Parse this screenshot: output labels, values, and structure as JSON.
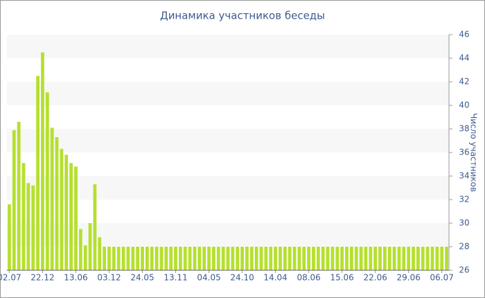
{
  "chart_data": {
    "type": "bar",
    "title": "Динамика участников беседы",
    "y_label": "Число участников",
    "categories": [
      "02.07",
      null,
      null,
      null,
      null,
      null,
      null,
      "22.12",
      null,
      null,
      null,
      null,
      null,
      null,
      "13.06",
      null,
      null,
      null,
      null,
      null,
      null,
      "03.12",
      null,
      null,
      null,
      null,
      null,
      null,
      "24.05",
      null,
      null,
      null,
      null,
      null,
      null,
      "13.11",
      null,
      null,
      null,
      null,
      null,
      null,
      "04.05",
      null,
      null,
      null,
      null,
      null,
      null,
      "24.10",
      null,
      null,
      null,
      null,
      null,
      null,
      "14.04",
      null,
      null,
      null,
      null,
      null,
      null,
      "08.06",
      null,
      null,
      null,
      null,
      null,
      null,
      "15.06",
      null,
      null,
      null,
      null,
      null,
      null,
      "22.06",
      null,
      null,
      null,
      null,
      null,
      null,
      "29.06",
      null,
      null,
      null,
      null,
      null,
      null,
      "06.07",
      null
    ],
    "values": [
      31.6,
      37.9,
      38.6,
      35.1,
      33.4,
      33.2,
      42.5,
      44.5,
      41.1,
      38.1,
      37.3,
      36.3,
      35.8,
      35.1,
      34.8,
      29.5,
      28.1,
      30.0,
      33.3,
      28.8,
      28,
      28,
      28,
      28,
      28,
      28,
      28,
      28,
      28,
      28,
      28,
      28,
      28,
      28,
      28,
      28,
      28,
      28,
      28,
      28,
      28,
      28,
      28,
      28,
      28,
      28,
      28,
      28,
      28,
      28,
      28,
      28,
      28,
      28,
      28,
      28,
      28,
      28,
      28,
      28,
      28,
      28,
      28,
      28,
      28,
      28,
      28,
      28,
      28,
      28,
      28,
      28,
      28,
      28,
      28,
      28,
      28,
      28,
      28,
      28,
      28,
      28,
      28,
      28,
      28,
      28,
      28,
      28,
      28,
      28,
      28,
      28,
      28
    ],
    "color": "#b5e02f",
    "ylim": [
      26,
      46
    ],
    "yticks": [
      26,
      28,
      30,
      32,
      34,
      36,
      38,
      40,
      42,
      44,
      46
    ],
    "grid": true,
    "y_axis_side": "right"
  }
}
